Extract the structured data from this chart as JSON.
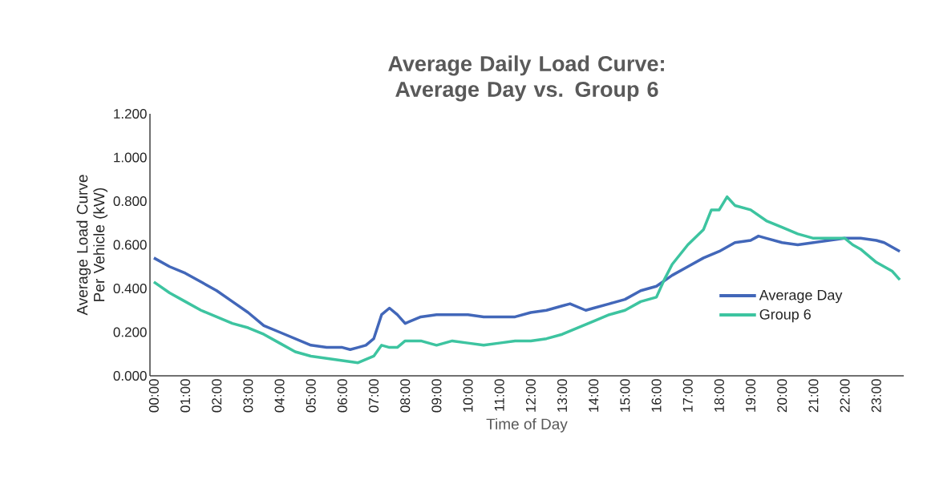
{
  "chart_data": {
    "type": "line",
    "title": "Average Daily Load Curve: Average Day vs. Group 6",
    "xlabel": "Time of Day",
    "ylabel": "Average Load Curve Per Vehicle (kW)",
    "xlim": [
      -0.125,
      23.875
    ],
    "ylim": [
      0,
      1.2
    ],
    "xticks": [
      {
        "value": 0,
        "label": "00:00"
      },
      {
        "value": 1,
        "label": "01:00"
      },
      {
        "value": 2,
        "label": "02:00"
      },
      {
        "value": 3,
        "label": "03:00"
      },
      {
        "value": 4,
        "label": "04:00"
      },
      {
        "value": 5,
        "label": "05:00"
      },
      {
        "value": 6,
        "label": "06:00"
      },
      {
        "value": 7,
        "label": "07:00"
      },
      {
        "value": 8,
        "label": "08:00"
      },
      {
        "value": 9,
        "label": "09:00"
      },
      {
        "value": 10,
        "label": "10:00"
      },
      {
        "value": 11,
        "label": "11:00"
      },
      {
        "value": 12,
        "label": "12:00"
      },
      {
        "value": 13,
        "label": "13:00"
      },
      {
        "value": 14,
        "label": "14:00"
      },
      {
        "value": 15,
        "label": "15:00"
      },
      {
        "value": 16,
        "label": "16:00"
      },
      {
        "value": 17,
        "label": "17:00"
      },
      {
        "value": 18,
        "label": "18:00"
      },
      {
        "value": 19,
        "label": "19:00"
      },
      {
        "value": 20,
        "label": "20:00"
      },
      {
        "value": 21,
        "label": "21:00"
      },
      {
        "value": 22,
        "label": "22:00"
      },
      {
        "value": 23,
        "label": "23:00"
      }
    ],
    "yticks": [
      {
        "value": 0,
        "label": "0.000"
      },
      {
        "value": 0.2,
        "label": "0.200"
      },
      {
        "value": 0.4,
        "label": "0.400"
      },
      {
        "value": 0.6,
        "label": "0.600"
      },
      {
        "value": 0.8,
        "label": "0.800"
      },
      {
        "value": 1.0,
        "label": "1.000"
      },
      {
        "value": 1.2,
        "label": "1.200"
      }
    ],
    "grid": false,
    "legend": "right",
    "marker": "none",
    "line_style": "solid",
    "series": [
      {
        "name": "Average Day",
        "color": "#4267b9",
        "x": [
          0,
          0.5,
          1,
          1.5,
          2,
          2.5,
          3,
          3.5,
          4,
          4.5,
          5,
          5.5,
          6,
          6.25,
          6.5,
          6.75,
          7,
          7.25,
          7.5,
          7.75,
          8,
          8.5,
          9,
          9.5,
          10,
          10.5,
          11,
          11.5,
          12,
          12.5,
          13,
          13.25,
          13.75,
          14,
          14.5,
          15,
          15.5,
          16,
          16.5,
          17,
          17.5,
          18,
          18.5,
          19,
          19.25,
          19.5,
          20,
          20.5,
          21,
          21.5,
          22,
          22.5,
          23,
          23.25,
          23.5,
          23.75
        ],
        "values": [
          0.54,
          0.5,
          0.47,
          0.43,
          0.39,
          0.34,
          0.29,
          0.23,
          0.2,
          0.17,
          0.14,
          0.13,
          0.13,
          0.12,
          0.13,
          0.14,
          0.17,
          0.28,
          0.31,
          0.28,
          0.24,
          0.27,
          0.28,
          0.28,
          0.28,
          0.27,
          0.27,
          0.27,
          0.29,
          0.3,
          0.32,
          0.33,
          0.3,
          0.31,
          0.33,
          0.35,
          0.39,
          0.41,
          0.46,
          0.5,
          0.54,
          0.57,
          0.61,
          0.62,
          0.64,
          0.63,
          0.61,
          0.6,
          0.61,
          0.62,
          0.63,
          0.63,
          0.62,
          0.61,
          0.59,
          0.57
        ]
      },
      {
        "name": "Group 6",
        "color": "#3dc4a0",
        "x": [
          0,
          0.5,
          1,
          1.5,
          2,
          2.5,
          3,
          3.5,
          4,
          4.5,
          5,
          5.5,
          6,
          6.5,
          7,
          7.25,
          7.5,
          7.75,
          8,
          8.5,
          9,
          9.5,
          10,
          10.5,
          11,
          11.5,
          12,
          12.5,
          13,
          13.5,
          14,
          14.5,
          15,
          15.5,
          16,
          16.25,
          16.5,
          17,
          17.5,
          17.75,
          18,
          18.25,
          18.5,
          19,
          19.5,
          20,
          20.5,
          21,
          21.5,
          22,
          22.25,
          22.5,
          23,
          23.5,
          23.75
        ],
        "values": [
          0.43,
          0.38,
          0.34,
          0.3,
          0.27,
          0.24,
          0.22,
          0.19,
          0.15,
          0.11,
          0.09,
          0.08,
          0.07,
          0.06,
          0.09,
          0.14,
          0.13,
          0.13,
          0.16,
          0.16,
          0.14,
          0.16,
          0.15,
          0.14,
          0.15,
          0.16,
          0.16,
          0.17,
          0.19,
          0.22,
          0.25,
          0.28,
          0.3,
          0.34,
          0.36,
          0.44,
          0.51,
          0.6,
          0.67,
          0.76,
          0.76,
          0.82,
          0.78,
          0.76,
          0.71,
          0.68,
          0.65,
          0.63,
          0.63,
          0.63,
          0.6,
          0.58,
          0.52,
          0.48,
          0.44
        ]
      }
    ]
  }
}
